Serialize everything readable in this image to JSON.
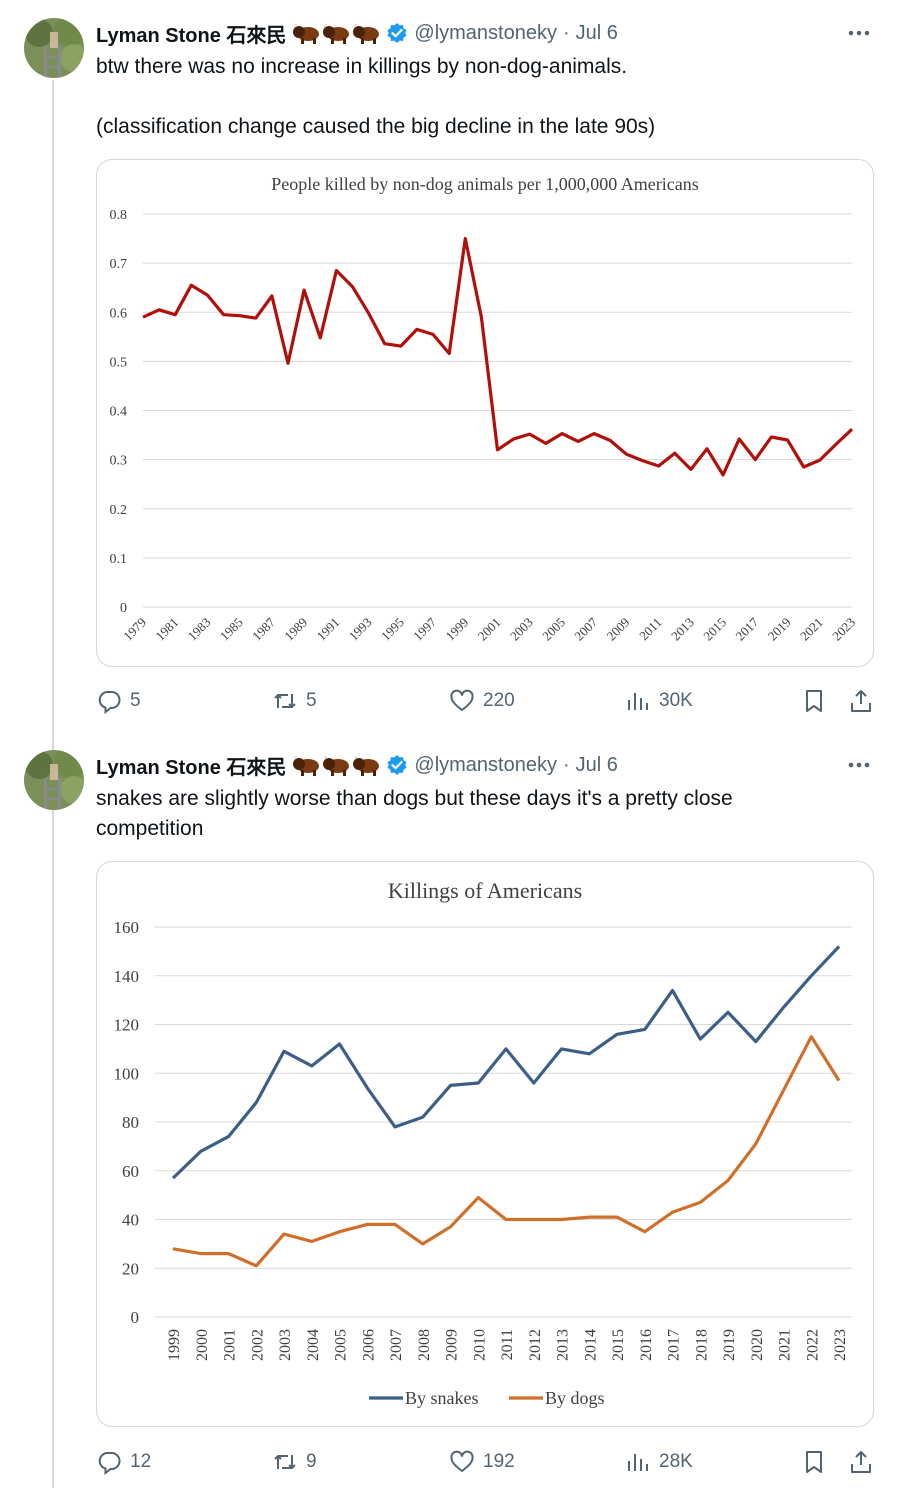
{
  "tweets": [
    {
      "author": "Lyman Stone 石來民",
      "handle": "@lymanstoneky",
      "date": "Jul 6",
      "text": "btw there was no increase in killings by non-dog-animals.\n\n(classification change caused the big decline in the late 90s)",
      "stats": {
        "replies": "5",
        "retweets": "5",
        "likes": "220",
        "views": "30K"
      }
    },
    {
      "author": "Lyman Stone 石來民",
      "handle": "@lymanstoneky",
      "date": "Jul 6",
      "text": "snakes are slightly worse than dogs but these days it's a pretty close competition",
      "stats": {
        "replies": "12",
        "retweets": "9",
        "likes": "192",
        "views": "28K"
      }
    }
  ],
  "icons": {
    "more": "more-horizontal-icon",
    "verified": "verified-badge-icon",
    "bison": "bison-emoji",
    "reply": "reply-icon",
    "retweet": "retweet-icon",
    "like": "heart-icon",
    "views": "views-icon",
    "bookmark": "bookmark-icon",
    "share": "share-icon"
  },
  "colors": {
    "verified": "#1d9bf0",
    "muted": "#536471",
    "border": "#cfd9de",
    "chart1_line": "#b00f0a",
    "snakes": "#3b5f87",
    "dogs": "#d06f2a"
  },
  "chart_data": [
    {
      "type": "line",
      "title": "People killed by non-dog animals per 1,000,000 Americans",
      "x": [
        1979,
        1980,
        1981,
        1982,
        1983,
        1984,
        1985,
        1986,
        1987,
        1988,
        1989,
        1990,
        1991,
        1992,
        1993,
        1994,
        1995,
        1996,
        1997,
        1998,
        1999,
        2000,
        2001,
        2002,
        2003,
        2004,
        2005,
        2006,
        2007,
        2008,
        2009,
        2010,
        2011,
        2012,
        2013,
        2014,
        2015,
        2016,
        2017,
        2018,
        2019,
        2020,
        2021,
        2022,
        2023
      ],
      "x_tick_labels": [
        "1979",
        "1981",
        "1983",
        "1985",
        "1987",
        "1989",
        "1991",
        "1993",
        "1995",
        "1997",
        "1999",
        "2001",
        "2003",
        "2005",
        "2007",
        "2009",
        "2011",
        "2013",
        "2015",
        "2017",
        "2019",
        "2021",
        "2023"
      ],
      "series": [
        {
          "values": [
            0.59,
            0.605,
            0.595,
            0.655,
            0.635,
            0.595,
            0.593,
            0.588,
            0.633,
            0.496,
            0.645,
            0.548,
            0.685,
            0.652,
            0.598,
            0.536,
            0.531,
            0.565,
            0.555,
            0.516,
            0.75,
            0.59,
            0.32,
            0.342,
            0.352,
            0.333,
            0.353,
            0.337,
            0.353,
            0.339,
            0.311,
            0.298,
            0.287,
            0.313,
            0.28,
            0.322,
            0.269,
            0.342,
            0.3,
            0.346,
            0.34,
            0.285,
            0.299,
            0.331,
            0.362
          ]
        }
      ],
      "ylim": [
        0,
        0.8
      ],
      "y_ticks": [
        "0",
        "0.1",
        "0.2",
        "0.3",
        "0.4",
        "0.5",
        "0.6",
        "0.7",
        "0.8"
      ],
      "grid": true
    },
    {
      "type": "line",
      "title": "Killings of Americans",
      "x": [
        "1999",
        "2000",
        "2001",
        "2002",
        "2003",
        "2004",
        "2005",
        "2006",
        "2007",
        "2008",
        "2009",
        "2010",
        "2011",
        "2012",
        "2013",
        "2014",
        "2015",
        "2016",
        "2017",
        "2018",
        "2019",
        "2020",
        "2021",
        "2022",
        "2023"
      ],
      "series": [
        {
          "name": "By snakes",
          "values": [
            57,
            68,
            74,
            88,
            109,
            103,
            112,
            94,
            78,
            82,
            95,
            96,
            110,
            96,
            110,
            108,
            116,
            118,
            134,
            114,
            125,
            113,
            127,
            140,
            152
          ]
        },
        {
          "name": "By dogs",
          "values": [
            28,
            26,
            26,
            21,
            34,
            31,
            35,
            38,
            38,
            30,
            37,
            49,
            40,
            40,
            40,
            41,
            41,
            35,
            43,
            47,
            56,
            71,
            93,
            115,
            97
          ]
        }
      ],
      "ylim": [
        0,
        160
      ],
      "y_ticks": [
        "0",
        "20",
        "40",
        "60",
        "80",
        "100",
        "120",
        "140",
        "160"
      ],
      "grid": true,
      "legend": "bottom"
    }
  ]
}
